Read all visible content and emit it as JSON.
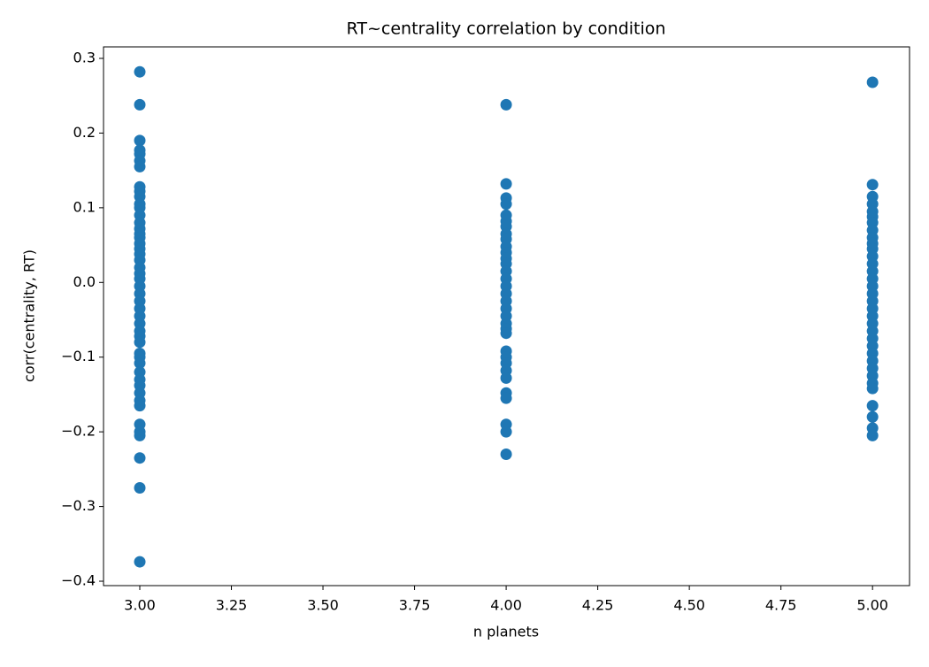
{
  "chart_data": {
    "type": "scatter",
    "title": "RT~centrality correlation by condition",
    "x_label": "n planets",
    "y_label": "corr(centrality, RT)",
    "color": "#1f77b4",
    "x": [
      3,
      3,
      3,
      3,
      3,
      3,
      3,
      3,
      3,
      3,
      3,
      3,
      3,
      3,
      3,
      3,
      3,
      3,
      3,
      3,
      3,
      3,
      3,
      3,
      3,
      3,
      3,
      3,
      3,
      3,
      3,
      3,
      3,
      3,
      3,
      3,
      3,
      3,
      3,
      3,
      3,
      3,
      3,
      3,
      3,
      3,
      3,
      3,
      4,
      4,
      4,
      4,
      4,
      4,
      4,
      4,
      4,
      4,
      4,
      4,
      4,
      4,
      4,
      4,
      4,
      4,
      4,
      4,
      4,
      4,
      4,
      4,
      4,
      4,
      4,
      4,
      4,
      4,
      4,
      4,
      4,
      5,
      5,
      5,
      5,
      5,
      5,
      5,
      5,
      5,
      5,
      5,
      5,
      5,
      5,
      5,
      5,
      5,
      5,
      5,
      5,
      5,
      5,
      5,
      5,
      5,
      5,
      5,
      5,
      5,
      5,
      5,
      5,
      5,
      5
    ],
    "values": [
      0.282,
      0.238,
      0.19,
      0.177,
      0.172,
      0.163,
      0.155,
      0.128,
      0.122,
      0.115,
      0.105,
      0.1,
      0.09,
      0.08,
      0.072,
      0.065,
      0.06,
      0.052,
      0.045,
      0.038,
      0.03,
      0.02,
      0.012,
      0.005,
      -0.005,
      -0.015,
      -0.025,
      -0.035,
      -0.045,
      -0.055,
      -0.065,
      -0.072,
      -0.08,
      -0.095,
      -0.1,
      -0.108,
      -0.12,
      -0.13,
      -0.138,
      -0.148,
      -0.158,
      -0.165,
      -0.19,
      -0.2,
      -0.205,
      -0.235,
      -0.275,
      -0.374,
      0.238,
      0.132,
      0.113,
      0.105,
      0.09,
      0.082,
      0.075,
      0.065,
      0.058,
      0.048,
      0.04,
      0.032,
      0.025,
      0.015,
      0.005,
      -0.005,
      -0.015,
      -0.025,
      -0.035,
      -0.045,
      -0.055,
      -0.062,
      -0.068,
      -0.092,
      -0.1,
      -0.108,
      -0.118,
      -0.128,
      -0.148,
      -0.155,
      -0.19,
      -0.2,
      -0.23,
      0.268,
      0.131,
      0.115,
      0.105,
      0.095,
      0.088,
      0.08,
      0.07,
      0.06,
      0.052,
      0.045,
      0.035,
      0.025,
      0.015,
      0.005,
      -0.005,
      -0.015,
      -0.025,
      -0.035,
      -0.045,
      -0.055,
      -0.065,
      -0.075,
      -0.085,
      -0.095,
      -0.105,
      -0.115,
      -0.125,
      -0.135,
      -0.142,
      -0.165,
      -0.18,
      -0.195,
      -0.205
    ],
    "xlim": [
      2.901,
      5.101
    ],
    "xticks": [
      {
        "value": 3,
        "label": "3.00"
      },
      {
        "value": 3.25,
        "label": "3.25"
      },
      {
        "value": 3.5,
        "label": "3.50"
      },
      {
        "value": 3.75,
        "label": "3.75"
      },
      {
        "value": 4,
        "label": "4.00"
      },
      {
        "value": 4.25,
        "label": "4.25"
      },
      {
        "value": 4.5,
        "label": "4.50"
      },
      {
        "value": 4.75,
        "label": "4.75"
      },
      {
        "value": 5,
        "label": "5.00"
      }
    ],
    "ylim": [
      -0.4059,
      0.3154
    ],
    "yticks": [
      {
        "value": -0.4,
        "label": "−0.4"
      },
      {
        "value": -0.3,
        "label": "−0.3"
      },
      {
        "value": -0.2,
        "label": "−0.2"
      },
      {
        "value": -0.1,
        "label": "−0.1"
      },
      {
        "value": 0,
        "label": "0.0"
      },
      0.1,
      0.2,
      0.3
    ],
    "grid": false
  }
}
